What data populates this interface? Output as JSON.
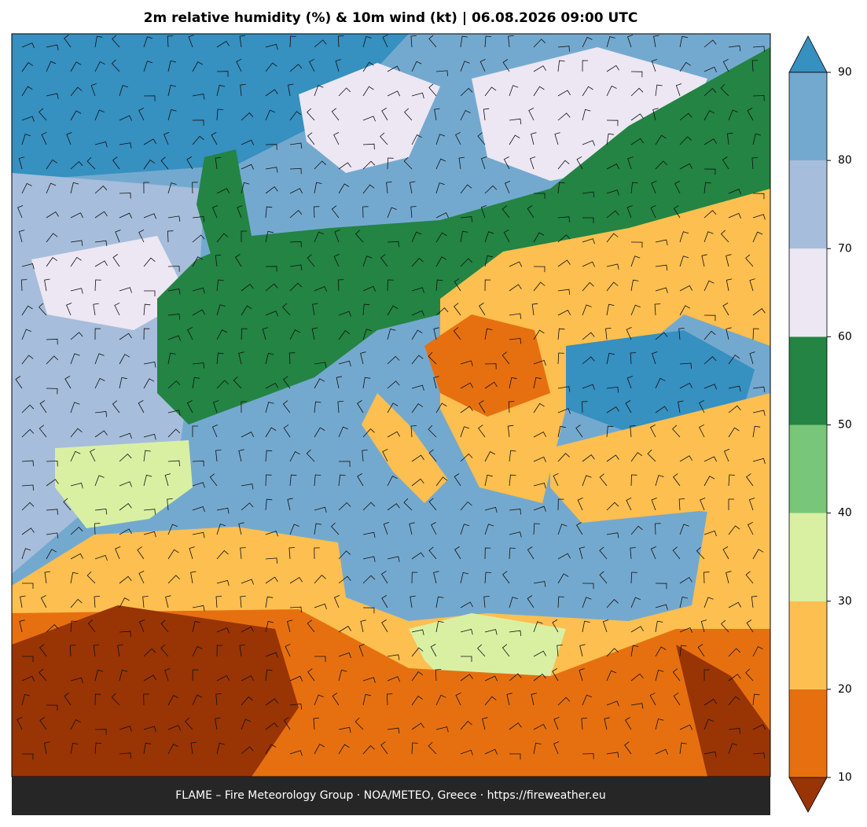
{
  "title": "2m relative humidity (%) & 10m wind (kt)  |  06.08.2026 09:00 UTC",
  "colorbar": {
    "ticks": [
      10,
      20,
      30,
      40,
      50,
      60,
      70,
      80,
      90
    ],
    "colors": [
      "#993404",
      "#e6700f",
      "#fdbf4f",
      "#d9f0a3",
      "#78c679",
      "#238443",
      "#ece7f2",
      "#a6bddb",
      "#74a9cf",
      "#3690c0"
    ]
  },
  "footer": "FLAME – Fire Meteorology Group · NOA/METEO, Greece · https://fireweather.eu"
}
